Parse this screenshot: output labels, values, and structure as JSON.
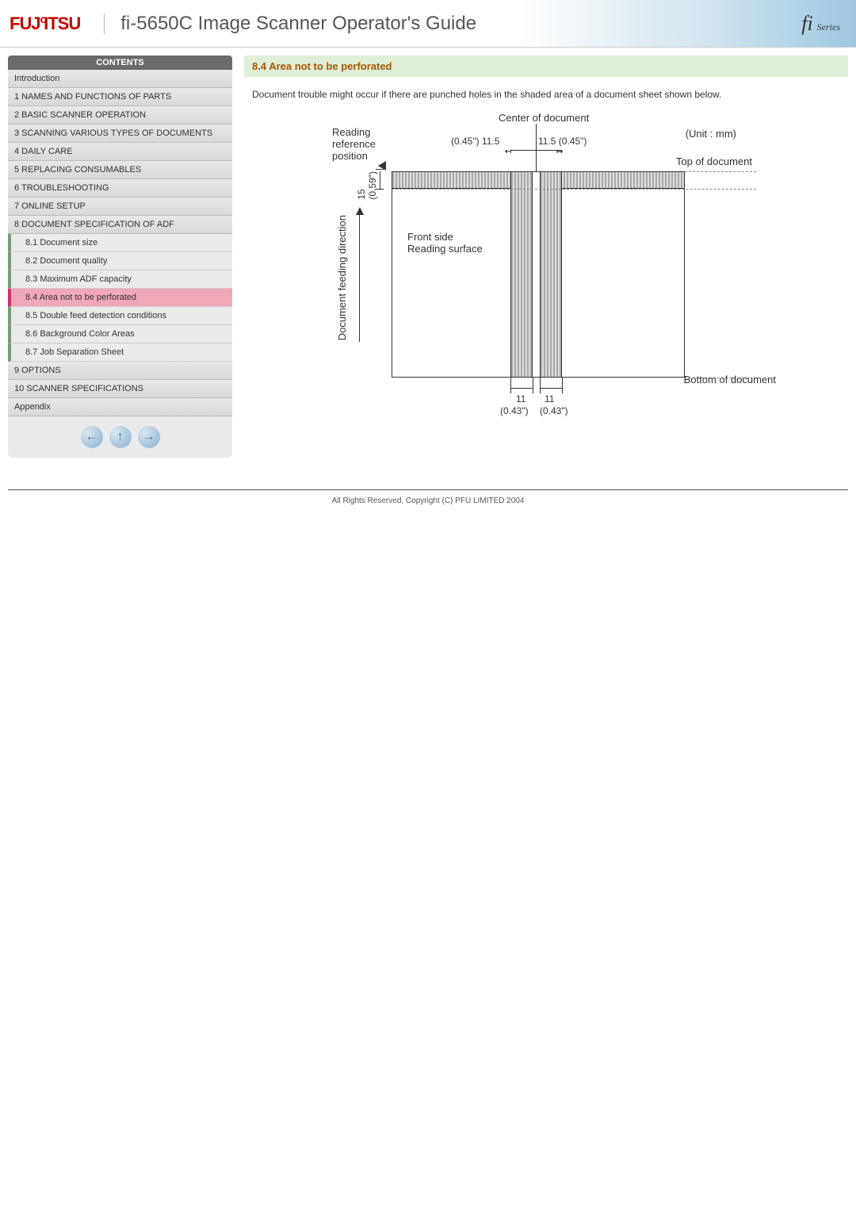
{
  "header": {
    "logo_text": "FUJITSU",
    "title": "fi-5650C Image Scanner Operator's Guide",
    "series_badge": "fi Series"
  },
  "sidebar": {
    "contents_label": "CONTENTS",
    "items": [
      {
        "label": "Introduction",
        "type": "main"
      },
      {
        "label": "1 NAMES AND FUNCTIONS OF PARTS",
        "type": "main"
      },
      {
        "label": "2 BASIC SCANNER OPERATION",
        "type": "main"
      },
      {
        "label": "3 SCANNING VARIOUS TYPES OF DOCUMENTS",
        "type": "main"
      },
      {
        "label": "4 DAILY CARE",
        "type": "main"
      },
      {
        "label": "5 REPLACING CONSUMABLES",
        "type": "main"
      },
      {
        "label": "6 TROUBLESHOOTING",
        "type": "main"
      },
      {
        "label": "7 ONLINE SETUP",
        "type": "main"
      },
      {
        "label": "8 DOCUMENT SPECIFICATION OF ADF",
        "type": "main"
      },
      {
        "label": "8.1 Document size",
        "type": "sub"
      },
      {
        "label": "8.2 Document quality",
        "type": "sub"
      },
      {
        "label": "8.3 Maximum ADF capacity",
        "type": "sub"
      },
      {
        "label": "8.4 Area not to be perforated",
        "type": "sub",
        "active": true
      },
      {
        "label": "8.5 Double feed detection conditions",
        "type": "sub"
      },
      {
        "label": "8.6 Background Color Areas",
        "type": "sub"
      },
      {
        "label": "8.7 Job Separation Sheet",
        "type": "sub"
      },
      {
        "label": "9 OPTIONS",
        "type": "main"
      },
      {
        "label": "10 SCANNER SPECIFICATIONS",
        "type": "main"
      },
      {
        "label": "Appendix",
        "type": "main"
      }
    ]
  },
  "main": {
    "title": "8.4 Area not to be perforated",
    "description": "Document trouble might occur if there are punched holes in the shaded area of a document sheet shown below."
  },
  "diagram": {
    "center_label": "Center of document",
    "reading_ref_label": "Reading reference position",
    "unit_label": "(Unit : mm)",
    "top_label": "Top of document",
    "bottom_label": "Bottom of document",
    "front_side_label": "Front side",
    "reading_surface_label": "Reading surface",
    "feed_direction_label": "Document feeding direction",
    "top_dim_left": "(0.45\") 11.5",
    "top_dim_right": "11.5 (0.45\")",
    "left_dim": "15",
    "left_dim_inch": "(0.59\")",
    "bottom_dim_left": "11",
    "bottom_dim_right": "11",
    "bottom_inch_left": "(0.43\")",
    "bottom_inch_right": "(0.43\")"
  },
  "footer": {
    "copyright": "All Rights Reserved, Copyright (C) PFU LIMITED 2004"
  },
  "colors": {
    "logo": "#cc0000",
    "title_band": "#e0f0d8",
    "title_text": "#aa5500",
    "active_bg": "#f0a8b8",
    "active_border": "#cc3366",
    "sub_border": "#7a9a7a",
    "contents_bg": "#6a6a6a"
  }
}
